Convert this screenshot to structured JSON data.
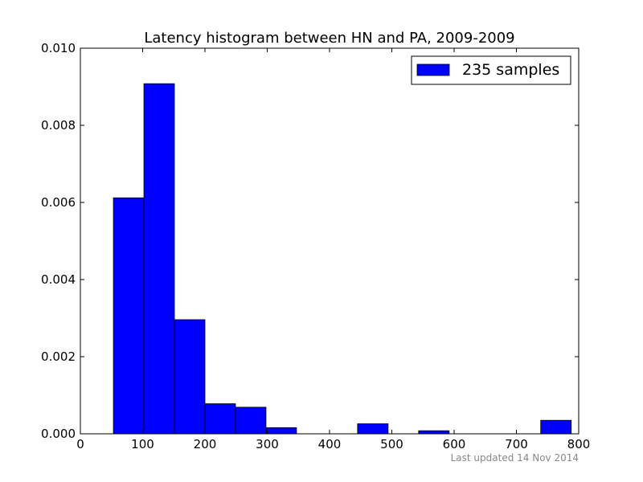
{
  "chart_data": {
    "type": "bar",
    "title": "Latency histogram between HN and PA, 2009-2009",
    "xlabel": "",
    "ylabel": "",
    "xlim": [
      0,
      800
    ],
    "ylim": [
      0,
      0.01
    ],
    "x_ticks": [
      0,
      100,
      200,
      300,
      400,
      500,
      600,
      700,
      800
    ],
    "x_tick_labels": [
      "0",
      "100",
      "200",
      "300",
      "400",
      "500",
      "600",
      "700",
      "800"
    ],
    "y_ticks": [
      0,
      0.002,
      0.004,
      0.006,
      0.008,
      0.01
    ],
    "y_tick_labels": [
      "0.000",
      "0.002",
      "0.004",
      "0.006",
      "0.008",
      "0.010"
    ],
    "grid": false,
    "legend_position": "top-right",
    "series": [
      {
        "name": "235 samples",
        "color": "#0000ff",
        "bins": [
          {
            "x0": 53,
            "x1": 102,
            "value": 0.00612
          },
          {
            "x0": 102,
            "x1": 151,
            "value": 0.00908
          },
          {
            "x0": 151,
            "x1": 200,
            "value": 0.00296
          },
          {
            "x0": 200,
            "x1": 249,
            "value": 0.00078
          },
          {
            "x0": 249,
            "x1": 298,
            "value": 0.00069
          },
          {
            "x0": 298,
            "x1": 347,
            "value": 0.00016
          },
          {
            "x0": 347,
            "x1": 396,
            "value": 0.0
          },
          {
            "x0": 396,
            "x1": 445,
            "value": 0.0
          },
          {
            "x0": 445,
            "x1": 494,
            "value": 0.00026
          },
          {
            "x0": 494,
            "x1": 543,
            "value": 0.0
          },
          {
            "x0": 543,
            "x1": 592,
            "value": 8e-05
          },
          {
            "x0": 592,
            "x1": 641,
            "value": 0.0
          },
          {
            "x0": 641,
            "x1": 690,
            "value": 0.0
          },
          {
            "x0": 690,
            "x1": 739,
            "value": 0.0
          },
          {
            "x0": 739,
            "x1": 788,
            "value": 0.00035
          }
        ]
      }
    ],
    "footer": "Last updated 14 Nov 2014"
  }
}
